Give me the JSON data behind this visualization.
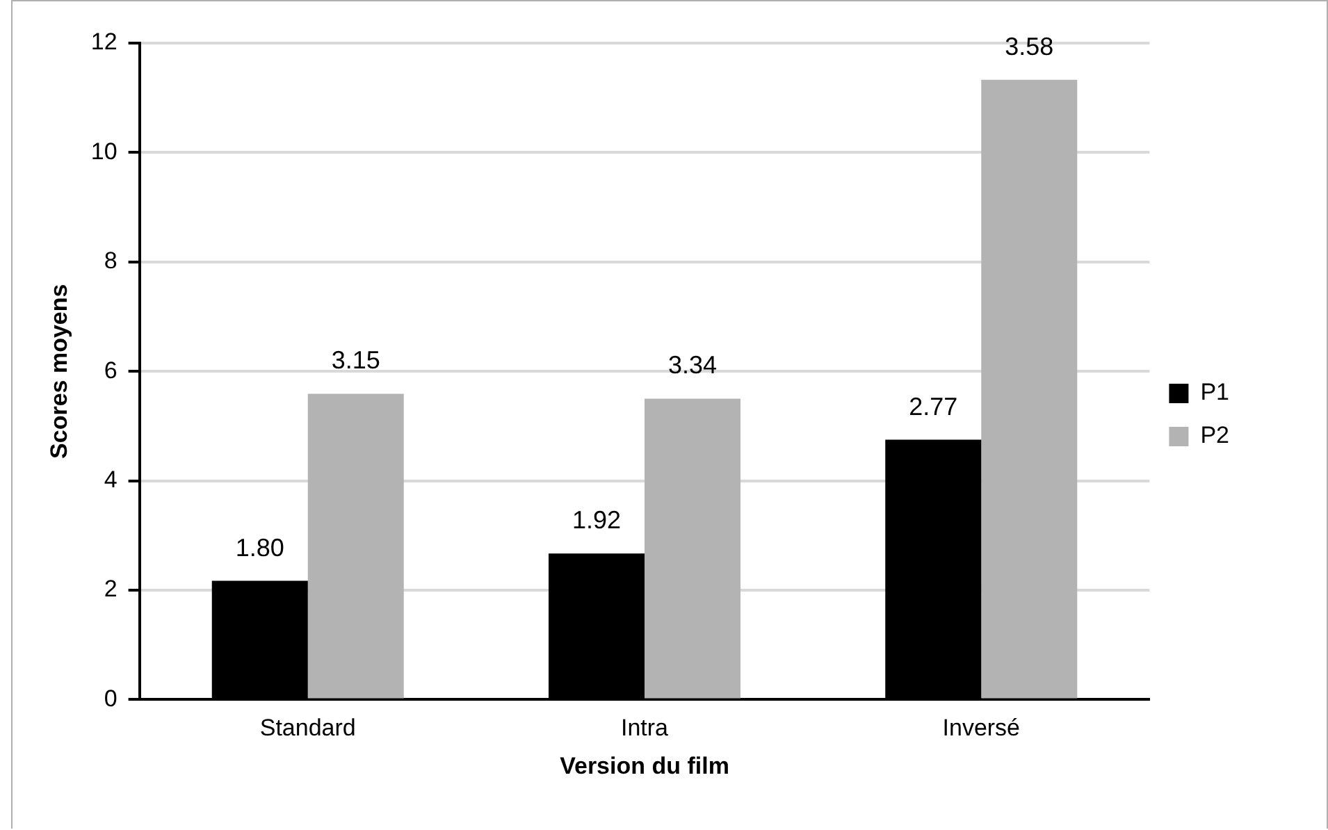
{
  "chart_data": {
    "type": "bar",
    "xlabel": "Version du film",
    "ylabel": "Scores moyens",
    "categories": [
      "Standard",
      "Intra",
      "Inversé"
    ],
    "series": [
      {
        "name": "P1",
        "color": "#000000",
        "values": [
          2.17,
          2.67,
          4.75
        ]
      },
      {
        "name": "P2",
        "color": "#b3b3b3",
        "values": [
          5.59,
          5.5,
          11.33
        ]
      }
    ],
    "annotations": [
      {
        "text": "1.80",
        "x": "Standard",
        "y": 2.17
      },
      {
        "text": "3.15",
        "x": "Standard",
        "y": 5.59
      },
      {
        "text": "1.92",
        "x": "Intra",
        "y": 2.67
      },
      {
        "text": "3.34",
        "x": "Intra",
        "y": 5.5
      },
      {
        "text": "2.77",
        "x": "Inversé",
        "y": 4.75
      },
      {
        "text": "3.58",
        "x": "Inversé",
        "y": 11.33
      }
    ],
    "ylim": [
      0,
      12
    ],
    "yticks": [
      0,
      2,
      4,
      6,
      8,
      10,
      12
    ],
    "grid": "y",
    "legend": "right"
  }
}
